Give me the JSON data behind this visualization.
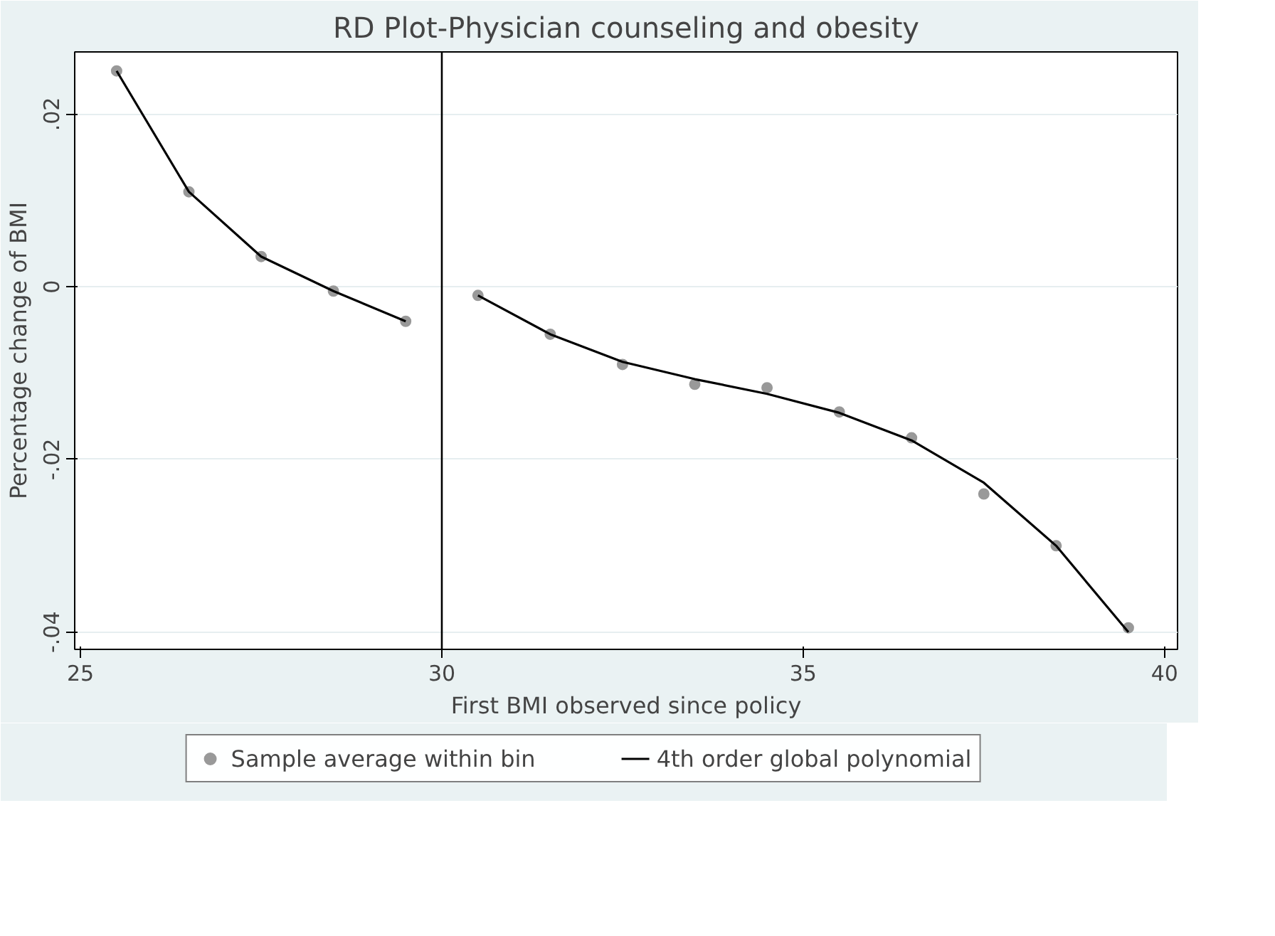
{
  "chart_data": {
    "type": "scatter",
    "title": "RD Plot-Physician counseling and obesity",
    "xlabel": "First BMI observed since policy",
    "ylabel": "Percentage change of BMI",
    "xlim": [
      24.92,
      40.18
    ],
    "xticks": [
      25,
      30,
      35,
      40
    ],
    "ylim": [
      -0.042,
      0.0272
    ],
    "yticks": [
      {
        "value": 0.02,
        "label": ".02"
      },
      {
        "value": 0,
        "label": "0"
      },
      {
        "value": -0.02,
        "label": "-.02"
      },
      {
        "value": -0.04,
        "label": "-.04"
      }
    ],
    "grid": "y",
    "legend": "bottom",
    "ref_lines": [
      {
        "axis": "x",
        "value": 30,
        "color": "#000000"
      }
    ],
    "series": [
      {
        "name": "Sample average within bin",
        "marker": "circle",
        "color": "#999999",
        "x": [
          25.5,
          26.5,
          27.5,
          28.5,
          29.5,
          30.5,
          31.5,
          32.5,
          33.5,
          34.5,
          35.5,
          36.5,
          37.5,
          38.5,
          39.5
        ],
        "values": [
          0.025,
          0.011,
          0.0035,
          -0.0005,
          -0.004,
          -0.001,
          -0.0055,
          -0.009,
          -0.0113,
          -0.0117,
          -0.0145,
          -0.0175,
          -0.024,
          -0.03,
          -0.0395
        ]
      },
      {
        "name": "4th order global polynomial",
        "type": "line",
        "line_style": "solid",
        "color": "#000000",
        "x": [
          25.5,
          26.5,
          27.5,
          28.5,
          29.5
        ],
        "values": [
          0.025,
          0.011,
          0.0035,
          -0.0005,
          -0.004
        ]
      },
      {
        "type": "line",
        "line_style": "solid",
        "color": "#000000",
        "x": [
          30.5,
          31.5,
          32.5,
          33.5,
          34.5,
          35.5,
          36.5,
          37.5,
          38.5,
          39.5
        ],
        "values": [
          -0.001,
          -0.0055,
          -0.0087,
          -0.0107,
          -0.0124,
          -0.0146,
          -0.0178,
          -0.0227,
          -0.03,
          -0.04
        ]
      }
    ]
  }
}
